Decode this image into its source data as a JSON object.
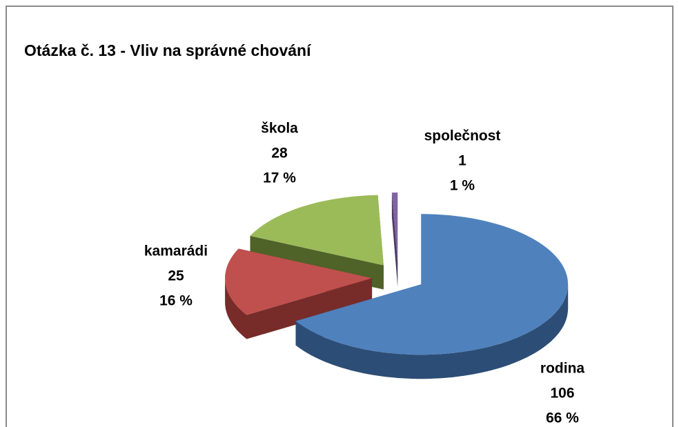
{
  "chart_data": {
    "type": "pie",
    "title": "Otázka č. 13 - Vliv na správné chování",
    "categories": [
      "rodina",
      "kamarádi",
      "škola",
      "společnost"
    ],
    "values": [
      106,
      25,
      28,
      1
    ],
    "percent_labels": [
      "66 %",
      "16 %",
      "17 %",
      "1 %"
    ],
    "colors": [
      "#4f81bd",
      "#c0504d",
      "#9bbb59",
      "#8064a2"
    ],
    "side_colors": [
      "#2c4d75",
      "#772c2a",
      "#4f6228",
      "#4b3a62"
    ]
  }
}
